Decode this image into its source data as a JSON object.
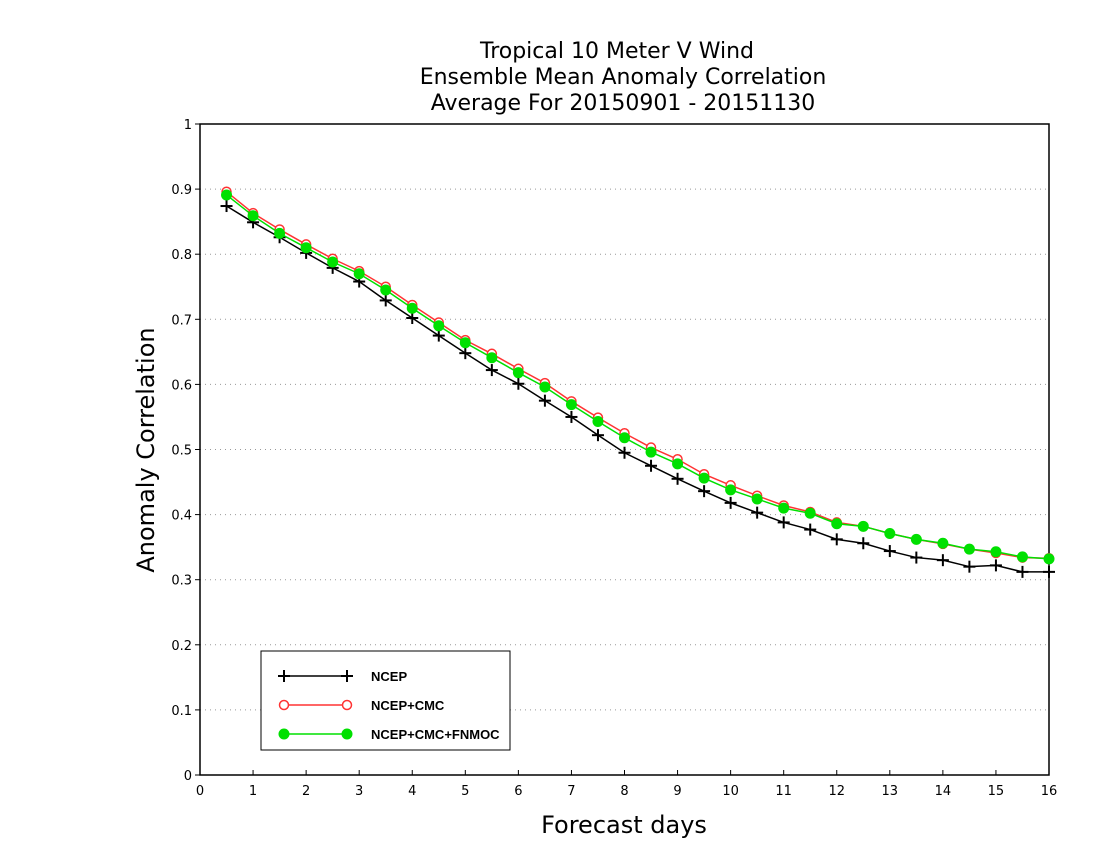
{
  "chart_data": {
    "type": "line",
    "title_lines": [
      "Tropical 10 Meter V Wind",
      "Ensemble Mean Anomaly Correlation",
      "Average For 20150901 - 20151130"
    ],
    "xlabel": "Forecast days",
    "ylabel": "Anomaly Correlation",
    "xlim": [
      0,
      16
    ],
    "ylim": [
      0,
      1
    ],
    "xticks": [
      "0",
      "1",
      "2",
      "3",
      "4",
      "5",
      "6",
      "7",
      "8",
      "9",
      "10",
      "11",
      "12",
      "13",
      "14",
      "15",
      "16"
    ],
    "yticks": [
      "0",
      "0.1",
      "0.2",
      "0.3",
      "0.4",
      "0.5",
      "0.6",
      "0.7",
      "0.8",
      "0.9",
      "1"
    ],
    "grid": true,
    "legend_position": "bottom-left",
    "x": [
      0.5,
      1,
      1.5,
      2,
      2.5,
      3,
      3.5,
      4,
      4.5,
      5,
      5.5,
      6,
      6.5,
      7,
      7.5,
      8,
      8.5,
      9,
      9.5,
      10,
      10.5,
      11,
      11.5,
      12,
      12.5,
      13,
      13.5,
      14,
      14.5,
      15,
      15.5,
      16
    ],
    "series": [
      {
        "name": "NCEP",
        "color": "#000000",
        "marker": "plus",
        "values": [
          0.874,
          0.849,
          0.826,
          0.802,
          0.779,
          0.758,
          0.729,
          0.702,
          0.675,
          0.648,
          0.622,
          0.601,
          0.575,
          0.55,
          0.522,
          0.495,
          0.475,
          0.455,
          0.436,
          0.418,
          0.403,
          0.388,
          0.377,
          0.362,
          0.356,
          0.344,
          0.334,
          0.33,
          0.32,
          0.322,
          0.312,
          0.312
        ]
      },
      {
        "name": "NCEP+CMC",
        "color": "#ff3333",
        "marker": "open-circle",
        "values": [
          0.896,
          0.863,
          0.838,
          0.815,
          0.793,
          0.774,
          0.75,
          0.722,
          0.695,
          0.668,
          0.647,
          0.624,
          0.602,
          0.574,
          0.549,
          0.525,
          0.503,
          0.485,
          0.462,
          0.445,
          0.429,
          0.414,
          0.404,
          0.388,
          0.382,
          0.371,
          0.362,
          0.355,
          0.347,
          0.341,
          0.334,
          0.333
        ]
      },
      {
        "name": "NCEP+CMC+FNMOC",
        "color": "#00e000",
        "marker": "filled-circle",
        "values": [
          0.891,
          0.859,
          0.832,
          0.81,
          0.788,
          0.77,
          0.745,
          0.717,
          0.69,
          0.664,
          0.641,
          0.618,
          0.596,
          0.569,
          0.543,
          0.518,
          0.496,
          0.478,
          0.456,
          0.438,
          0.424,
          0.41,
          0.402,
          0.386,
          0.382,
          0.371,
          0.362,
          0.356,
          0.347,
          0.343,
          0.335,
          0.332
        ]
      }
    ]
  }
}
